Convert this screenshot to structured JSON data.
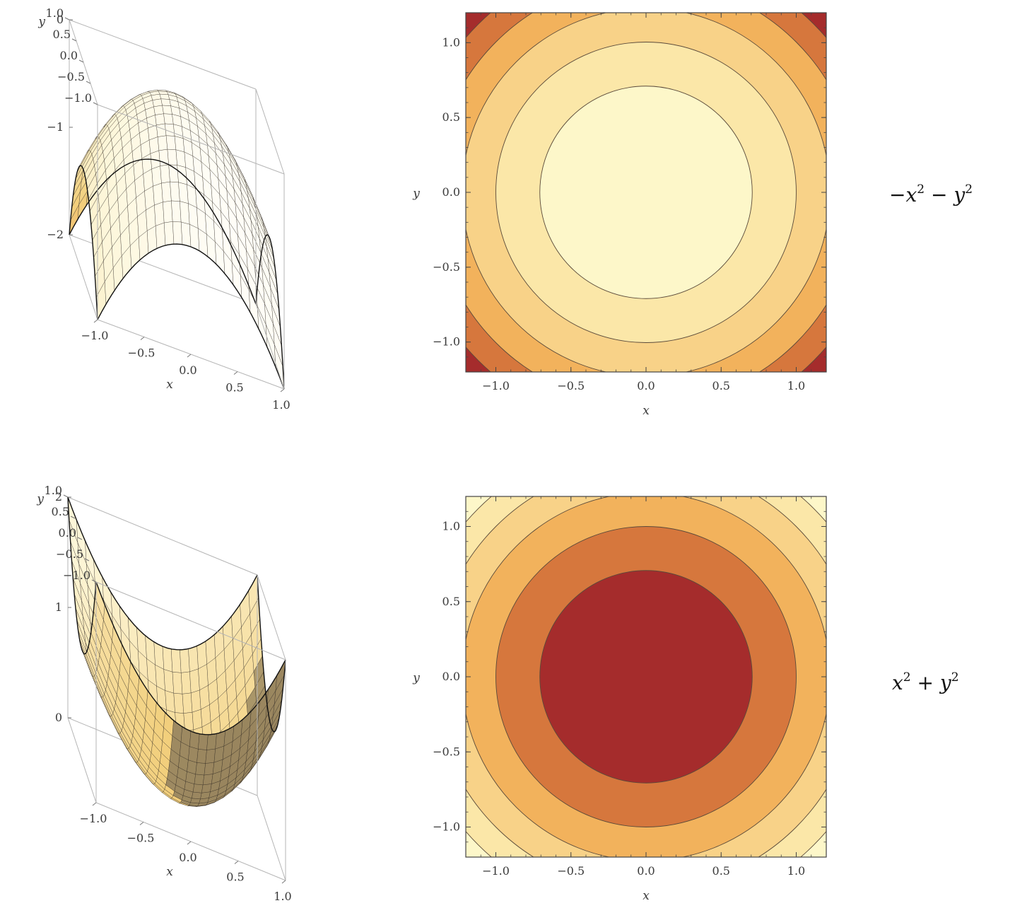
{
  "palette": {
    "contour_levels_light_to_dark": [
      "#fdf7c9",
      "#fbe7a8",
      "#f8d288",
      "#f2b25c",
      "#d6773d",
      "#a52c2c"
    ],
    "surface_light": "#fdf6d8",
    "surface_mid": "#f2cf7c",
    "surface_dark": "#e07a3a",
    "surface_shadow": "#7d6a4c",
    "mesh_line": "#2a2420",
    "box_line": "#b5b5b5",
    "contour_line": "#5a4a3a"
  },
  "chart_data": [
    {
      "id": "surface-top",
      "type": "surface3d",
      "function": "-x^2 - y^2",
      "xlabel": "x",
      "ylabel": "y",
      "x_ticks": [
        "−1.0",
        "−0.5",
        "0.0",
        "0.5",
        "1.0"
      ],
      "y_ticks": [
        "−1.0",
        "−0.5",
        "0.0",
        "0.5",
        "1.0"
      ],
      "z_ticks": [
        "0",
        "−1",
        "−2"
      ],
      "xlim": [
        -1,
        1
      ],
      "ylim": [
        -1,
        1
      ],
      "zlim": [
        -2,
        0
      ]
    },
    {
      "id": "contour-top",
      "type": "contour",
      "function": "-x^2 - y^2",
      "xlabel": "x",
      "ylabel": "y",
      "x_ticks": [
        "−1.0",
        "−0.5",
        "0.0",
        "0.5",
        "1.0"
      ],
      "y_ticks": [
        "−1.0",
        "−0.5",
        "0.0",
        "0.5",
        "1.0"
      ],
      "xlim": [
        -1.2,
        1.2
      ],
      "ylim": [
        -1.2,
        1.2
      ],
      "contour_levels": [
        -0.5,
        -1.0,
        -1.5,
        -2.0,
        -2.5
      ]
    },
    {
      "id": "surface-bottom",
      "type": "surface3d",
      "function": "x^2 + y^2",
      "xlabel": "x",
      "ylabel": "y",
      "x_ticks": [
        "−1.0",
        "−0.5",
        "0.0",
        "0.5",
        "1.0"
      ],
      "y_ticks": [
        "−1.0",
        "−0.5",
        "0.0",
        "0.5",
        "1.0"
      ],
      "z_ticks": [
        "0",
        "1",
        "2"
      ],
      "xlim": [
        -1,
        1
      ],
      "ylim": [
        -1,
        1
      ],
      "zlim": [
        0,
        2
      ]
    },
    {
      "id": "contour-bottom",
      "type": "contour",
      "function": "x^2 + y^2",
      "xlabel": "x",
      "ylabel": "y",
      "x_ticks": [
        "−1.0",
        "−0.5",
        "0.0",
        "0.5",
        "1.0"
      ],
      "y_ticks": [
        "−1.0",
        "−0.5",
        "0.0",
        "0.5",
        "1.0"
      ],
      "xlim": [
        -1.2,
        1.2
      ],
      "ylim": [
        -1.2,
        1.2
      ],
      "contour_levels": [
        0.5,
        1.0,
        1.5,
        2.0,
        2.5
      ]
    }
  ],
  "formulas": [
    {
      "base1": "−x",
      "sup1": "2",
      "op": " − ",
      "base2": "y",
      "sup2": "2"
    },
    {
      "base1": "x",
      "sup1": "2",
      "op": " + ",
      "base2": "y",
      "sup2": "2"
    }
  ]
}
